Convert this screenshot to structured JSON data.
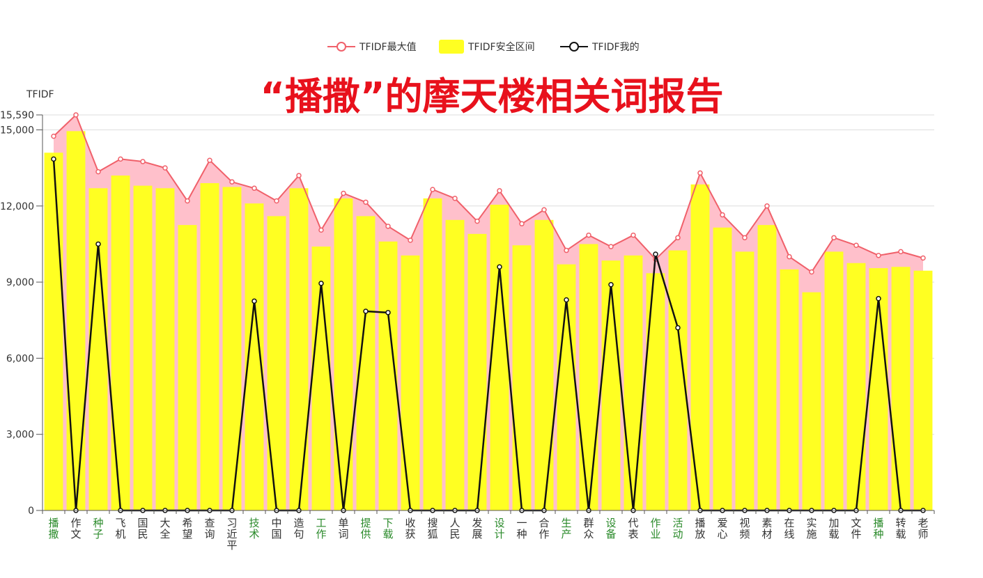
{
  "chart_data": {
    "type": "bar",
    "title": "“播撒”的摩天楼相关词报告",
    "ylabel": "TFIDF",
    "ylim": [
      0,
      15590
    ],
    "yticks": [
      0,
      3000,
      6000,
      9000,
      12000,
      15000,
      15590
    ],
    "ytick_labels": [
      "0",
      "3,000",
      "6,000",
      "9,000",
      "12,000",
      "15,000",
      "15,590"
    ],
    "grid": true,
    "legend_placement": "top-center",
    "categories": [
      "播撒",
      "作文",
      "种子",
      "飞机",
      "国民",
      "大全",
      "希望",
      "查询",
      "习近平",
      "技术",
      "中国",
      "造句",
      "工作",
      "单词",
      "提供",
      "下载",
      "收获",
      "搜狐",
      "人民",
      "发展",
      "设计",
      "一种",
      "合作",
      "生产",
      "群众",
      "设备",
      "代表",
      "作业",
      "活动",
      "播放",
      "爱心",
      "视频",
      "素材",
      "在线",
      "实施",
      "加载",
      "文件",
      "播种",
      "转载",
      "老师"
    ],
    "highlighted": [
      true,
      false,
      true,
      false,
      false,
      false,
      false,
      false,
      false,
      true,
      false,
      false,
      true,
      false,
      true,
      true,
      false,
      false,
      false,
      false,
      true,
      false,
      false,
      true,
      false,
      true,
      false,
      true,
      true,
      false,
      false,
      false,
      false,
      false,
      false,
      false,
      false,
      true,
      false,
      false
    ],
    "series": [
      {
        "name": "TFIDF最大值",
        "kind": "line-area",
        "color": "#f0606a",
        "fill": "#ffc0cb",
        "values": [
          14750,
          15590,
          13350,
          13850,
          13750,
          13500,
          12200,
          13800,
          12950,
          12700,
          12200,
          13200,
          11050,
          12500,
          12150,
          11200,
          10650,
          12650,
          12300,
          11400,
          12600,
          11300,
          11850,
          10250,
          10850,
          10400,
          10850,
          9900,
          10750,
          13300,
          11650,
          10750,
          12000,
          10000,
          9400,
          10750,
          10450,
          10050,
          10200,
          9950
        ]
      },
      {
        "name": "TFIDF安全区间",
        "kind": "bar",
        "color": "#ffff22",
        "values": [
          14100,
          14950,
          12700,
          13200,
          12800,
          12700,
          11250,
          12900,
          12750,
          12100,
          11600,
          12700,
          10400,
          12300,
          11600,
          10600,
          10050,
          12300,
          11450,
          10900,
          12050,
          10450,
          11450,
          9700,
          10500,
          9850,
          10050,
          9350,
          10250,
          12850,
          11150,
          10200,
          11250,
          9500,
          8600,
          10200,
          9750,
          9550,
          9600,
          9450
        ]
      },
      {
        "name": "TFIDF我的",
        "kind": "line",
        "color": "#111111",
        "values": [
          13850,
          0,
          10500,
          0,
          0,
          0,
          0,
          0,
          0,
          8250,
          0,
          0,
          8950,
          0,
          7850,
          7800,
          0,
          0,
          0,
          0,
          9600,
          0,
          0,
          8300,
          0,
          8900,
          0,
          10100,
          7200,
          0,
          0,
          0,
          0,
          0,
          0,
          0,
          0,
          8350,
          0,
          0
        ]
      }
    ]
  },
  "colors": {
    "highlight_label": "#2a8a2a",
    "normal_label": "#333333",
    "grid": "#dddddd",
    "axis": "#555555"
  }
}
